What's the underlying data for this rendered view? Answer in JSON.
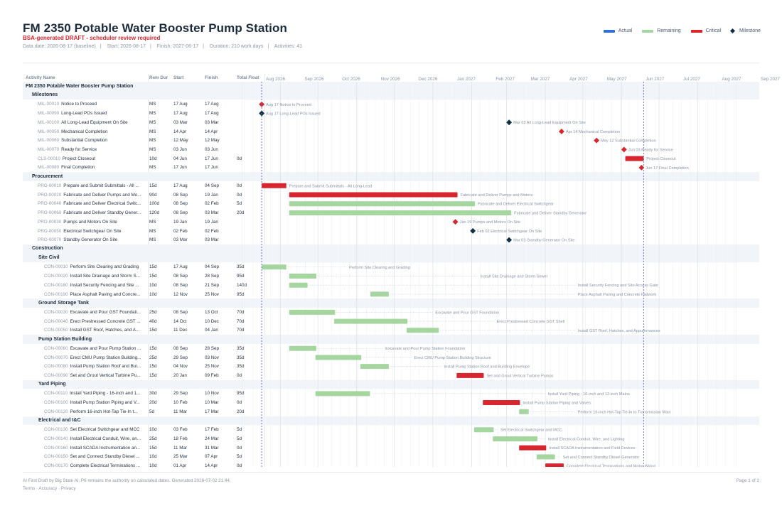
{
  "title": "FM 2350 Potable Water Booster Pump Station",
  "subtitle": "BSA-generated DRAFT - scheduler review required",
  "meta": {
    "data_date": "Data date: 2026-08-17 (baseline)",
    "start": "Start: 2026-08-17",
    "finish": "Finish: 2027-06-17",
    "duration": "Duration: 210 work days",
    "activities": "Activities: 41"
  },
  "legend": [
    {
      "label": "Actual",
      "color": "#2f6fd6",
      "type": "bar"
    },
    {
      "label": "Remaining",
      "color": "#a6d6a0",
      "type": "bar"
    },
    {
      "label": "Critical",
      "color": "#d7262e",
      "type": "bar"
    },
    {
      "label": "Milestone",
      "color": "#0e2f44",
      "type": "diamond"
    }
  ],
  "colors": {
    "actual": "#2f6fd6",
    "remaining": "#a6d6a0",
    "critical": "#d7262e",
    "milestone": "#0e2f44",
    "datadate": "#7b6fd0"
  },
  "columns": {
    "name": "Activity Name",
    "rem_dur": "Rem Dur",
    "start": "Start",
    "finish": "Finish",
    "total_float": "Total Float"
  },
  "months": [
    "Aug 2026",
    "Sep 2026",
    "Oct 2026",
    "Nov 2026",
    "Dec 2026",
    "Jan 2027",
    "Feb 2027",
    "Mar 2027",
    "Apr 2027",
    "May 2027",
    "Jun 2027",
    "Jul 2027",
    "Aug 2027",
    "Sep 2027"
  ],
  "timeline": {
    "start": "2026-08-01",
    "end": "2027-09-01",
    "data_date": "2026-08-17",
    "finish_date": "2027-06-17"
  },
  "rows": [
    {
      "kind": "project",
      "name": "FM 2350 Potable Water Booster Pump Station"
    },
    {
      "kind": "wbs1",
      "name": "Milestones"
    },
    {
      "kind": "act",
      "code": "MIL-00010",
      "name": "Notice to Proceed",
      "dur": "MS",
      "start": "17 Aug",
      "finish": "17 Aug",
      "float": "",
      "bar": {
        "type": "ms",
        "crit": true,
        "s": "2026-08-17",
        "label": "Aug 17  Notice to Proceed"
      }
    },
    {
      "kind": "act",
      "code": "MIL-00090",
      "name": "Long-Lead POs Issued",
      "dur": "MS",
      "start": "17 Aug",
      "finish": "17 Aug",
      "float": "",
      "bar": {
        "type": "ms",
        "crit": false,
        "s": "2026-08-17",
        "label": "Aug 17  Long-Lead POs Issued"
      }
    },
    {
      "kind": "act",
      "code": "MIL-00100",
      "name": "All Long-Lead Equipment On Site",
      "dur": "MS",
      "start": "03 Mar",
      "finish": "03 Mar",
      "float": "",
      "bar": {
        "type": "ms",
        "crit": false,
        "s": "2027-03-03",
        "label": "Mar 03  All Long-Lead Equipment On Site"
      }
    },
    {
      "kind": "act",
      "code": "MIL-00050",
      "name": "Mechanical Completion",
      "dur": "MS",
      "start": "14 Apr",
      "finish": "14 Apr",
      "float": "",
      "bar": {
        "type": "ms",
        "crit": true,
        "s": "2027-04-14",
        "label": "Apr 14  Mechanical Completion"
      }
    },
    {
      "kind": "act",
      "code": "MIL-00060",
      "name": "Substantial Completion",
      "dur": "MS",
      "start": "12 May",
      "finish": "12 May",
      "float": "",
      "bar": {
        "type": "ms",
        "crit": true,
        "s": "2027-05-12",
        "label": "May 12  Substantial Completion"
      }
    },
    {
      "kind": "act",
      "code": "MIL-00070",
      "name": "Ready for Service",
      "dur": "MS",
      "start": "03 Jun",
      "finish": "03 Jun",
      "float": "",
      "bar": {
        "type": "ms",
        "crit": true,
        "s": "2027-06-03",
        "label": "Jun 03  Ready for Service"
      }
    },
    {
      "kind": "act",
      "code": "CLS-00010",
      "name": "Project Closeout",
      "dur": "10d",
      "start": "04 Jun",
      "finish": "17 Jun",
      "float": "0d",
      "bar": {
        "type": "bar",
        "crit": true,
        "s": "2027-06-04",
        "f": "2027-06-17",
        "label": "Project Closeout"
      }
    },
    {
      "kind": "act",
      "code": "MIL-00080",
      "name": "Final Completion",
      "dur": "MS",
      "start": "17 Jun",
      "finish": "17 Jun",
      "float": "",
      "bar": {
        "type": "ms",
        "crit": true,
        "s": "2027-06-17",
        "label": "Jun 17  Final Completion"
      }
    },
    {
      "kind": "wbs1",
      "name": "Procurement"
    },
    {
      "kind": "act",
      "code": "PRO-00010",
      "name": "Prepare and Submit Submittals - All ...",
      "dur": "15d",
      "start": "17 Aug",
      "finish": "04 Sep",
      "float": "0d",
      "bar": {
        "type": "bar",
        "crit": true,
        "s": "2026-08-17",
        "f": "2026-09-04",
        "label": "Prepare and Submit Submittals - All Long-Lead"
      }
    },
    {
      "kind": "act",
      "code": "PRO-00020",
      "name": "Fabricate and Deliver Pumps and Mo...",
      "dur": "90d",
      "start": "08 Sep",
      "finish": "19 Jan",
      "float": "0d",
      "bar": {
        "type": "bar",
        "crit": true,
        "s": "2026-09-08",
        "f": "2027-01-19",
        "label": "Fabricate and Deliver Pumps and Motors"
      }
    },
    {
      "kind": "act",
      "code": "PRO-00040",
      "name": "Fabricate and Deliver Electrical Switc...",
      "dur": "100d",
      "start": "08 Sep",
      "finish": "02 Feb",
      "float": "5d",
      "bar": {
        "type": "bar",
        "crit": false,
        "s": "2026-09-08",
        "f": "2027-02-02",
        "label": "Fabricate and Deliver Electrical Switchgear"
      }
    },
    {
      "kind": "act",
      "code": "PRO-00060",
      "name": "Fabricate and Deliver Standby Gener...",
      "dur": "120d",
      "start": "08 Sep",
      "finish": "03 Mar",
      "float": "20d",
      "bar": {
        "type": "bar",
        "crit": false,
        "s": "2026-09-08",
        "f": "2027-03-03",
        "label": "Fabricate and Deliver Standby Generator"
      }
    },
    {
      "kind": "act",
      "code": "PRO-00030",
      "name": "Pumps and Motors On Site",
      "dur": "MS",
      "start": "19 Jan",
      "finish": "19 Jan",
      "float": "",
      "bar": {
        "type": "ms",
        "crit": true,
        "s": "2027-01-19",
        "label": "Jan 19  Pumps and Motors On Site"
      }
    },
    {
      "kind": "act",
      "code": "PRO-00050",
      "name": "Electrical Switchgear On Site",
      "dur": "MS",
      "start": "02 Feb",
      "finish": "02 Feb",
      "float": "",
      "bar": {
        "type": "ms",
        "crit": false,
        "s": "2027-02-02",
        "label": "Feb 02  Electrical Switchgear On Site"
      }
    },
    {
      "kind": "act",
      "code": "PRO-00070",
      "name": "Standby Generator On Site",
      "dur": "MS",
      "start": "03 Mar",
      "finish": "03 Mar",
      "float": "",
      "bar": {
        "type": "ms",
        "crit": false,
        "s": "2027-03-03",
        "label": "Mar 03  Standby Generator On Site"
      }
    },
    {
      "kind": "wbs1",
      "name": "Construction"
    },
    {
      "kind": "wbs2",
      "name": "Site Civil"
    },
    {
      "kind": "act",
      "code": "CON-00010",
      "name": "Perform Site Clearing and Grading",
      "dur": "15d",
      "start": "17 Aug",
      "finish": "04 Sep",
      "float": "35d",
      "bar": {
        "type": "bar",
        "crit": false,
        "s": "2026-08-17",
        "f": "2026-09-04",
        "label": "Perform Site Clearing and Grading",
        "lbl": "2026-10-26"
      }
    },
    {
      "kind": "act",
      "code": "CON-00020",
      "name": "Install Site Drainage and Storm S...",
      "dur": "15d",
      "start": "08 Sep",
      "finish": "28 Sep",
      "float": "95d",
      "bar": {
        "type": "bar",
        "crit": false,
        "s": "2026-09-08",
        "f": "2026-09-28",
        "label": "Install Site Drainage and Storm Sewer",
        "lbl": "2027-02-08"
      }
    },
    {
      "kind": "act",
      "code": "CON-00180",
      "name": "Install Security Fencing and Site ...",
      "dur": "10d",
      "start": "08 Sep",
      "finish": "21 Sep",
      "float": "140d",
      "bar": {
        "type": "bar",
        "crit": false,
        "s": "2026-09-08",
        "f": "2026-09-21",
        "label": "Install Security Fencing and Site Access Gate",
        "lbl": "2027-04-27"
      }
    },
    {
      "kind": "act",
      "code": "CON-00190",
      "name": "Place Asphalt Paving and Concre...",
      "dur": "10d",
      "start": "12 Nov",
      "finish": "25 Nov",
      "float": "95d",
      "bar": {
        "type": "bar",
        "crit": false,
        "s": "2026-11-12",
        "f": "2026-11-25",
        "label": "Place Asphalt Paving and Concrete Flatwork",
        "lbl": "2027-04-27"
      }
    },
    {
      "kind": "wbs2",
      "name": "Ground Storage Tank"
    },
    {
      "kind": "act",
      "code": "CON-00030",
      "name": "Excavate and Pour GST Foundati...",
      "dur": "25d",
      "start": "08 Sep",
      "finish": "13 Oct",
      "float": "70d",
      "bar": {
        "type": "bar",
        "crit": false,
        "s": "2026-09-08",
        "f": "2026-10-13",
        "label": "Excavate and Pour GST Foundation",
        "lbl": "2027-01-03"
      }
    },
    {
      "kind": "act",
      "code": "CON-00040",
      "name": "Erect Prestressed Concrete GST ...",
      "dur": "40d",
      "start": "14 Oct",
      "finish": "10 Dec",
      "float": "70d",
      "bar": {
        "type": "bar",
        "crit": false,
        "s": "2026-10-14",
        "f": "2026-12-10",
        "label": "Erect Prestressed Concrete GST Shell",
        "lbl": "2027-02-21"
      }
    },
    {
      "kind": "act",
      "code": "CON-00050",
      "name": "Install GST Roof, Hatches, and A...",
      "dur": "15d",
      "start": "11 Dec",
      "finish": "04 Jan",
      "float": "70d",
      "bar": {
        "type": "bar",
        "crit": false,
        "s": "2026-12-11",
        "f": "2027-01-04",
        "label": "Install GST Roof, Hatches, and Appurtenances",
        "lbl": "2027-04-27"
      }
    },
    {
      "kind": "wbs2",
      "name": "Pump Station Building"
    },
    {
      "kind": "act",
      "code": "CON-00060",
      "name": "Excavate and Pour Pump Station ...",
      "dur": "15d",
      "start": "08 Sep",
      "finish": "28 Sep",
      "float": "35d",
      "bar": {
        "type": "bar",
        "crit": false,
        "s": "2026-09-08",
        "f": "2026-09-28",
        "label": "Excavate and Pour Pump Station Foundation",
        "lbl": "2026-11-24"
      }
    },
    {
      "kind": "act",
      "code": "CON-00070",
      "name": "Erect CMU Pump Station Building...",
      "dur": "25d",
      "start": "29 Sep",
      "finish": "03 Nov",
      "float": "35d",
      "bar": {
        "type": "bar",
        "crit": false,
        "s": "2026-09-29",
        "f": "2026-11-03",
        "label": "Erect CMU Pump Station Building Structure",
        "lbl": "2026-12-17"
      }
    },
    {
      "kind": "act",
      "code": "CON-00080",
      "name": "Install Pump Station Roof and Bui...",
      "dur": "15d",
      "start": "04 Nov",
      "finish": "25 Nov",
      "float": "35d",
      "bar": {
        "type": "bar",
        "crit": false,
        "s": "2026-11-04",
        "f": "2026-11-25",
        "label": "Install Pump Station Roof and Building Envelope",
        "lbl": "2027-01-10"
      }
    },
    {
      "kind": "act",
      "code": "CON-00090",
      "name": "Set and Grout Vertical Turbine Pu...",
      "dur": "15d",
      "start": "20 Jan",
      "finish": "09 Feb",
      "float": "0d",
      "bar": {
        "type": "bar",
        "crit": true,
        "s": "2027-01-20",
        "f": "2027-02-09",
        "label": "Set and Grout Vertical Turbine Pumps"
      }
    },
    {
      "kind": "wbs2",
      "name": "Yard Piping"
    },
    {
      "kind": "act",
      "code": "CON-00110",
      "name": "Install Yard Piping - 16-inch and 1...",
      "dur": "30d",
      "start": "29 Sep",
      "finish": "10 Nov",
      "float": "95d",
      "bar": {
        "type": "bar",
        "crit": false,
        "s": "2026-09-29",
        "f": "2026-11-10",
        "label": "Install Yard Piping - 16-inch and 12-inch Mains",
        "lbl": "2027-04-03"
      }
    },
    {
      "kind": "act",
      "code": "CON-00100",
      "name": "Install Pump Station Piping and V...",
      "dur": "20d",
      "start": "10 Feb",
      "finish": "10 Mar",
      "float": "0d",
      "bar": {
        "type": "bar",
        "crit": true,
        "s": "2027-02-10",
        "f": "2027-03-10",
        "label": "Install Pump Station Piping and Valves"
      }
    },
    {
      "kind": "act",
      "code": "CON-00120",
      "name": "Perform 16-inch Hot-Tap Tie-In t...",
      "dur": "5d",
      "start": "11 Mar",
      "finish": "17 Mar",
      "float": "20d",
      "bar": {
        "type": "bar",
        "crit": false,
        "s": "2027-03-11",
        "f": "2027-03-17",
        "label": "Perform 16-inch Hot-Tap Tie-In to Transmission Main",
        "lbl": "2027-04-27"
      }
    },
    {
      "kind": "wbs2",
      "name": "Electrical and I&C"
    },
    {
      "kind": "act",
      "code": "CON-00130",
      "name": "Set Electrical Switchgear and MCC",
      "dur": "10d",
      "start": "03 Feb",
      "finish": "17 Feb",
      "float": "5d",
      "bar": {
        "type": "bar",
        "crit": false,
        "s": "2027-02-03",
        "f": "2027-02-17",
        "label": "Set Electrical Switchgear and MCC",
        "lbl": "2027-02-24"
      }
    },
    {
      "kind": "act",
      "code": "CON-00140",
      "name": "Install Electrical Conduit, Wire, an...",
      "dur": "25d",
      "start": "18 Feb",
      "finish": "24 Mar",
      "float": "5d",
      "bar": {
        "type": "bar",
        "crit": false,
        "s": "2027-02-18",
        "f": "2027-03-24",
        "label": "Install Electrical Conduit, Wire, and Lighting",
        "lbl": "2027-04-03"
      }
    },
    {
      "kind": "act",
      "code": "CON-00160",
      "name": "Install SCADA Instrumentation an...",
      "dur": "15d",
      "start": "11 Mar",
      "finish": "31 Mar",
      "float": "0d",
      "bar": {
        "type": "bar",
        "crit": true,
        "s": "2027-03-11",
        "f": "2027-03-31",
        "label": "Install SCADA Instrumentation and Field Devices"
      }
    },
    {
      "kind": "act",
      "code": "CON-00150",
      "name": "Set and Connect Standby Diesel ...",
      "dur": "10d",
      "start": "25 Mar",
      "finish": "07 Apr",
      "float": "5d",
      "bar": {
        "type": "bar",
        "crit": false,
        "s": "2027-03-25",
        "f": "2027-04-07",
        "label": "Set and Connect Standby Diesel Generator",
        "lbl": "2027-04-15"
      }
    },
    {
      "kind": "act",
      "code": "CON-00170",
      "name": "Complete Electrical Terminations ...",
      "dur": "10d",
      "start": "01 Apr",
      "finish": "14 Apr",
      "float": "0d",
      "bar": {
        "type": "bar",
        "crit": true,
        "s": "2027-04-01",
        "f": "2027-04-14",
        "label": "Complete Electrical Terminations and Motor Wiring"
      }
    }
  ],
  "footer": {
    "note": "AI First Draft by Big State AI. P6 remains the authority on calculated dates. Generated 2026-07-02 21:44.",
    "links": [
      "Terms",
      "Accuracy",
      "Privacy"
    ],
    "page": "Page 1 of 2"
  }
}
